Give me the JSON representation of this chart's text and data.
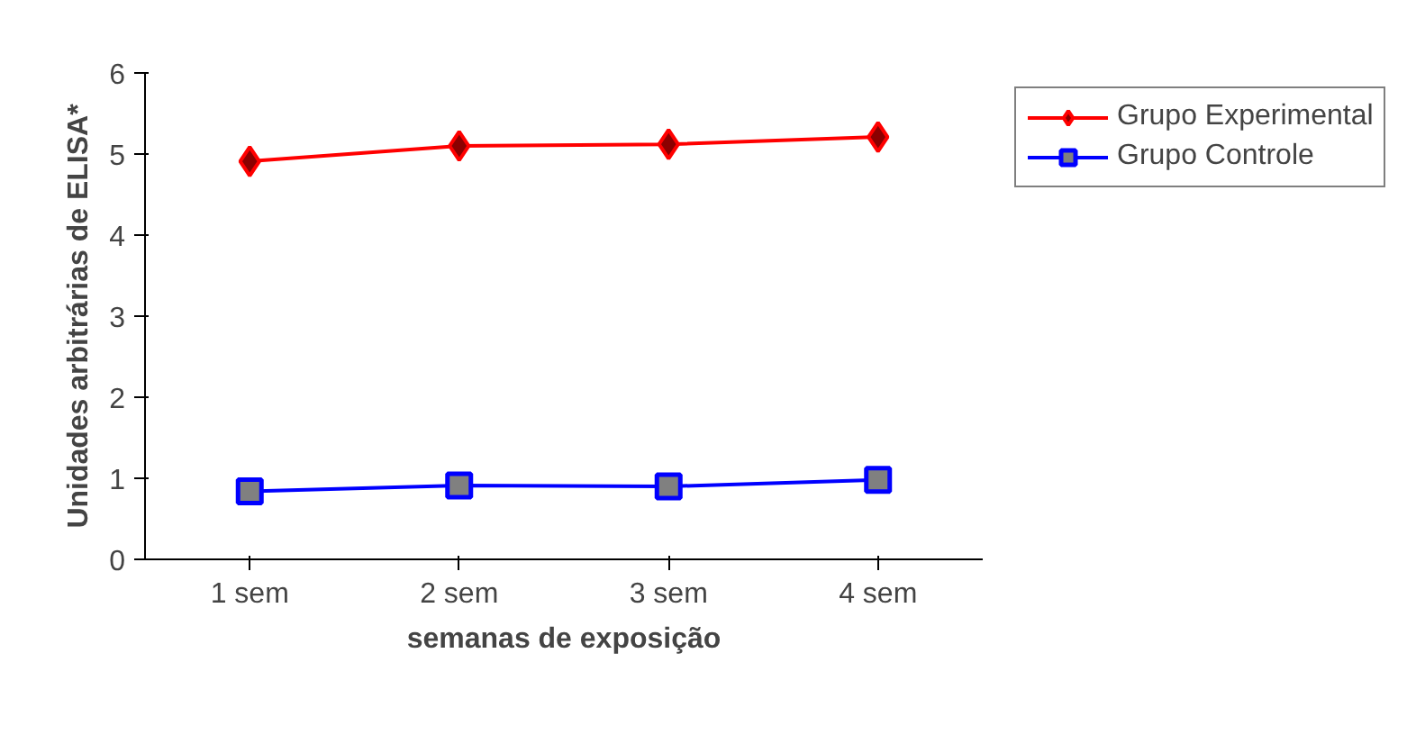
{
  "chart_data": {
    "type": "line",
    "xlabel": "semanas de exposição",
    "ylabel": "Unidades arbitrárias de ELISA*",
    "categories": [
      "1 sem",
      "2 sem",
      "3 sem",
      "4 sem"
    ],
    "series": [
      {
        "name": "Grupo Experimental",
        "color": "#ff0000",
        "marker": "diamond",
        "values": [
          4.91,
          5.1,
          5.12,
          5.21
        ]
      },
      {
        "name": "Grupo Controle",
        "color": "#0000ff",
        "marker": "square",
        "values": [
          0.84,
          0.91,
          0.9,
          0.98
        ]
      }
    ],
    "ylim": [
      0,
      6
    ],
    "yticks": [
      0,
      1,
      2,
      3,
      4,
      5,
      6
    ],
    "grid": false,
    "legend": "top right"
  }
}
